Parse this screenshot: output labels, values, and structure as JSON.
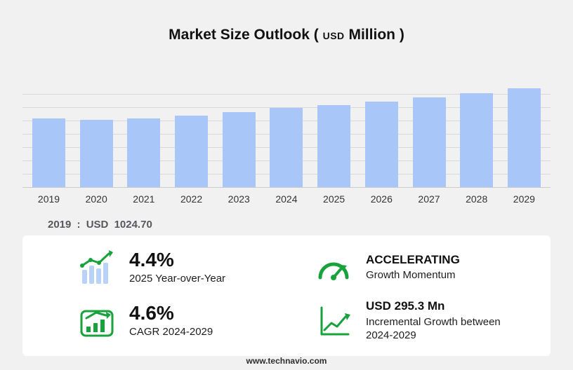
{
  "title": {
    "main": "Market Size Outlook",
    "unit_open": "(",
    "unit_currency": "USD",
    "unit_name": "Million",
    "unit_close": ")"
  },
  "chart_data": {
    "type": "bar",
    "title": "Market Size Outlook (USD Million)",
    "categories": [
      "2019",
      "2020",
      "2021",
      "2022",
      "2023",
      "2024",
      "2025",
      "2026",
      "2027",
      "2028",
      "2029"
    ],
    "values": [
      1024.7,
      1002,
      1022,
      1062,
      1110,
      1170.5,
      1222,
      1271,
      1330,
      1394,
      1465.8
    ],
    "xlabel": "",
    "ylabel": "USD Million",
    "ylim": [
      0,
      1550
    ],
    "grid": true,
    "legend": "none",
    "annotation": "2019 : USD 1024.70"
  },
  "base_year": {
    "year": "2019",
    "separator": ":",
    "currency": "USD",
    "value": "1024.70"
  },
  "stats": [
    {
      "icon": "yoy-bars-arrow-icon",
      "value": "4.4%",
      "label": "2025 Year-over-Year"
    },
    {
      "icon": "gauge-icon",
      "value": "ACCELERATING",
      "label": "Growth Momentum"
    },
    {
      "icon": "cagr-chart-icon",
      "value": "4.6%",
      "label": "CAGR 2024-2029"
    },
    {
      "icon": "line-growth-icon",
      "value": "USD 295.3 Mn",
      "label": "Incremental Growth between 2024-2029"
    }
  ],
  "footer": {
    "url": "www.technavio.com"
  },
  "colors": {
    "bar": "#a9c6f8",
    "accent_green": "#17a23b",
    "icon_bar_blue": "#b9d2f7",
    "background": "#f1f1f2",
    "panel": "#ffffff",
    "grid": "#d9d9d9"
  }
}
